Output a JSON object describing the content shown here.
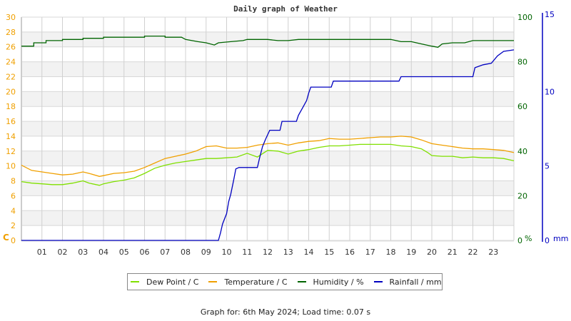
{
  "chart_data": {
    "type": "line",
    "title": "Daily graph of Weather",
    "xlabel": "",
    "x_ticks": [
      "01",
      "02",
      "03",
      "04",
      "05",
      "06",
      "07",
      "08",
      "09",
      "10",
      "11",
      "12",
      "13",
      "14",
      "15",
      "16",
      "17",
      "18",
      "19",
      "20",
      "21",
      "22",
      "23"
    ],
    "x_range_hours": [
      0,
      24
    ],
    "axes": {
      "left": {
        "label": "C",
        "min": 0,
        "max": 30,
        "ticks": [
          0,
          2,
          4,
          6,
          8,
          10,
          12,
          14,
          16,
          18,
          20,
          22,
          24,
          26,
          28,
          30
        ],
        "color": "#f0a000"
      },
      "humidity": {
        "label": "%",
        "min": 0,
        "max": 100,
        "ticks": [
          0,
          20,
          40,
          60,
          80,
          100
        ],
        "color": "#006400"
      },
      "rainfall": {
        "label": "mm",
        "min": 0,
        "max": 15,
        "ticks": [
          0,
          5,
          10,
          15
        ],
        "color": "#0000c0"
      }
    },
    "grid": true,
    "legend_position": "bottom",
    "series": [
      {
        "name": "Dew Point / C",
        "axis": "left",
        "color": "#80e000",
        "points": [
          [
            0,
            7.9
          ],
          [
            0.5,
            7.7
          ],
          [
            1,
            7.6
          ],
          [
            1.5,
            7.5
          ],
          [
            2,
            7.5
          ],
          [
            2.5,
            7.7
          ],
          [
            3,
            8.0
          ],
          [
            3.3,
            7.7
          ],
          [
            3.8,
            7.4
          ],
          [
            4,
            7.6
          ],
          [
            4.5,
            7.9
          ],
          [
            5,
            8.1
          ],
          [
            5.5,
            8.4
          ],
          [
            6,
            9.0
          ],
          [
            6.5,
            9.7
          ],
          [
            7,
            10.1
          ],
          [
            7.5,
            10.4
          ],
          [
            8,
            10.6
          ],
          [
            8.5,
            10.8
          ],
          [
            9,
            11.0
          ],
          [
            9.5,
            11.0
          ],
          [
            10,
            11.1
          ],
          [
            10.5,
            11.2
          ],
          [
            11,
            11.7
          ],
          [
            11.5,
            11.2
          ],
          [
            12,
            12.1
          ],
          [
            12.5,
            12.0
          ],
          [
            13,
            11.6
          ],
          [
            13.5,
            12.0
          ],
          [
            14,
            12.2
          ],
          [
            14.5,
            12.5
          ],
          [
            15,
            12.7
          ],
          [
            15.5,
            12.7
          ],
          [
            16,
            12.8
          ],
          [
            16.5,
            12.9
          ],
          [
            17,
            12.9
          ],
          [
            17.5,
            12.9
          ],
          [
            18,
            12.9
          ],
          [
            18.5,
            12.7
          ],
          [
            19,
            12.6
          ],
          [
            19.5,
            12.3
          ],
          [
            19.8,
            11.8
          ],
          [
            20,
            11.4
          ],
          [
            20.5,
            11.3
          ],
          [
            21,
            11.3
          ],
          [
            21.5,
            11.1
          ],
          [
            22,
            11.2
          ],
          [
            22.5,
            11.1
          ],
          [
            23,
            11.1
          ],
          [
            23.5,
            11.0
          ],
          [
            24,
            10.7
          ]
        ]
      },
      {
        "name": "Temperature / C",
        "axis": "left",
        "color": "#f0a000",
        "points": [
          [
            0,
            10.1
          ],
          [
            0.5,
            9.4
          ],
          [
            1,
            9.2
          ],
          [
            1.5,
            9.0
          ],
          [
            2,
            8.8
          ],
          [
            2.5,
            8.9
          ],
          [
            3,
            9.2
          ],
          [
            3.3,
            9.0
          ],
          [
            3.8,
            8.6
          ],
          [
            4,
            8.7
          ],
          [
            4.5,
            9.0
          ],
          [
            5,
            9.1
          ],
          [
            5.5,
            9.3
          ],
          [
            6,
            9.8
          ],
          [
            6.5,
            10.4
          ],
          [
            7,
            11.0
          ],
          [
            7.5,
            11.3
          ],
          [
            8,
            11.6
          ],
          [
            8.5,
            12.0
          ],
          [
            9,
            12.6
          ],
          [
            9.5,
            12.7
          ],
          [
            10,
            12.4
          ],
          [
            10.5,
            12.4
          ],
          [
            11,
            12.5
          ],
          [
            11.5,
            12.8
          ],
          [
            12,
            13.0
          ],
          [
            12.5,
            13.1
          ],
          [
            13,
            12.8
          ],
          [
            13.5,
            13.1
          ],
          [
            14,
            13.3
          ],
          [
            14.5,
            13.4
          ],
          [
            15,
            13.7
          ],
          [
            15.5,
            13.6
          ],
          [
            16,
            13.6
          ],
          [
            16.5,
            13.7
          ],
          [
            17,
            13.8
          ],
          [
            17.5,
            13.9
          ],
          [
            18,
            13.9
          ],
          [
            18.5,
            14.0
          ],
          [
            19,
            13.9
          ],
          [
            19.5,
            13.5
          ],
          [
            20,
            13.0
          ],
          [
            20.5,
            12.8
          ],
          [
            21,
            12.6
          ],
          [
            21.5,
            12.4
          ],
          [
            22,
            12.3
          ],
          [
            22.5,
            12.3
          ],
          [
            23,
            12.2
          ],
          [
            23.5,
            12.1
          ],
          [
            24,
            11.8
          ]
        ]
      },
      {
        "name": "Humidity / %",
        "axis": "humidity",
        "color": "#006400",
        "points": [
          [
            0,
            87
          ],
          [
            0.6,
            87
          ],
          [
            0.6,
            88.5
          ],
          [
            1.2,
            88.5
          ],
          [
            1.2,
            89.5
          ],
          [
            2,
            89.5
          ],
          [
            2,
            90
          ],
          [
            3,
            90
          ],
          [
            3,
            90.5
          ],
          [
            4,
            90.5
          ],
          [
            4,
            91
          ],
          [
            5,
            91
          ],
          [
            5,
            91
          ],
          [
            6,
            91
          ],
          [
            6,
            91.5
          ],
          [
            7,
            91.5
          ],
          [
            7,
            91
          ],
          [
            7.8,
            91
          ],
          [
            8,
            90
          ],
          [
            8.6,
            89
          ],
          [
            9,
            88.5
          ],
          [
            9.4,
            87.5
          ],
          [
            9.6,
            88.5
          ],
          [
            10.2,
            89
          ],
          [
            10.8,
            89.5
          ],
          [
            11,
            90
          ],
          [
            12,
            90
          ],
          [
            12.5,
            89.5
          ],
          [
            13,
            89.5
          ],
          [
            13.5,
            90
          ],
          [
            14,
            90
          ],
          [
            15,
            90
          ],
          [
            15.5,
            90
          ],
          [
            16,
            90
          ],
          [
            17,
            90
          ],
          [
            18,
            90
          ],
          [
            18.5,
            89
          ],
          [
            19,
            89
          ],
          [
            19.5,
            88
          ],
          [
            20,
            87
          ],
          [
            20.3,
            86.5
          ],
          [
            20.5,
            88
          ],
          [
            21,
            88.5
          ],
          [
            21.6,
            88.5
          ],
          [
            22,
            89.5
          ],
          [
            22.5,
            89.5
          ],
          [
            23,
            89.5
          ],
          [
            24,
            89.5
          ]
        ]
      },
      {
        "name": "Rainfall / mm",
        "axis": "rainfall",
        "color": "#0000c0",
        "points": [
          [
            0,
            0
          ],
          [
            9.6,
            0
          ],
          [
            9.7,
            0.5
          ],
          [
            9.8,
            1.1
          ],
          [
            10,
            1.8
          ],
          [
            10.1,
            2.6
          ],
          [
            10.2,
            3.1
          ],
          [
            10.35,
            4.1
          ],
          [
            10.45,
            4.8
          ],
          [
            10.6,
            4.9
          ],
          [
            11.5,
            4.9
          ],
          [
            11.6,
            5.5
          ],
          [
            11.75,
            6.3
          ],
          [
            11.9,
            6.8
          ],
          [
            12.1,
            7.4
          ],
          [
            12.5,
            7.4
          ],
          [
            12.6,
            7.4
          ],
          [
            12.7,
            8.0
          ],
          [
            13.4,
            8.0
          ],
          [
            13.5,
            8.4
          ],
          [
            13.7,
            8.9
          ],
          [
            13.9,
            9.4
          ],
          [
            14,
            9.9
          ],
          [
            14.1,
            10.3
          ],
          [
            15.1,
            10.3
          ],
          [
            15.2,
            10.7
          ],
          [
            18.4,
            10.7
          ],
          [
            18.5,
            11.0
          ],
          [
            20.6,
            11.0
          ],
          [
            21.0,
            11.0
          ],
          [
            22.0,
            11.0
          ],
          [
            22.1,
            11.6
          ],
          [
            22.5,
            11.8
          ],
          [
            22.9,
            11.9
          ],
          [
            23.2,
            12.4
          ],
          [
            23.5,
            12.7
          ],
          [
            24,
            12.8
          ]
        ]
      }
    ]
  },
  "legend": {
    "items": [
      {
        "label": "Dew Point / C",
        "color": "#80e000"
      },
      {
        "label": "Temperature / C",
        "color": "#f0a000"
      },
      {
        "label": "Humidity / %",
        "color": "#006400"
      },
      {
        "label": "Rainfall / mm",
        "color": "#0000c0"
      }
    ]
  },
  "footer": {
    "text": "Graph for: 6th May 2024; Load time: 0.07 s"
  }
}
